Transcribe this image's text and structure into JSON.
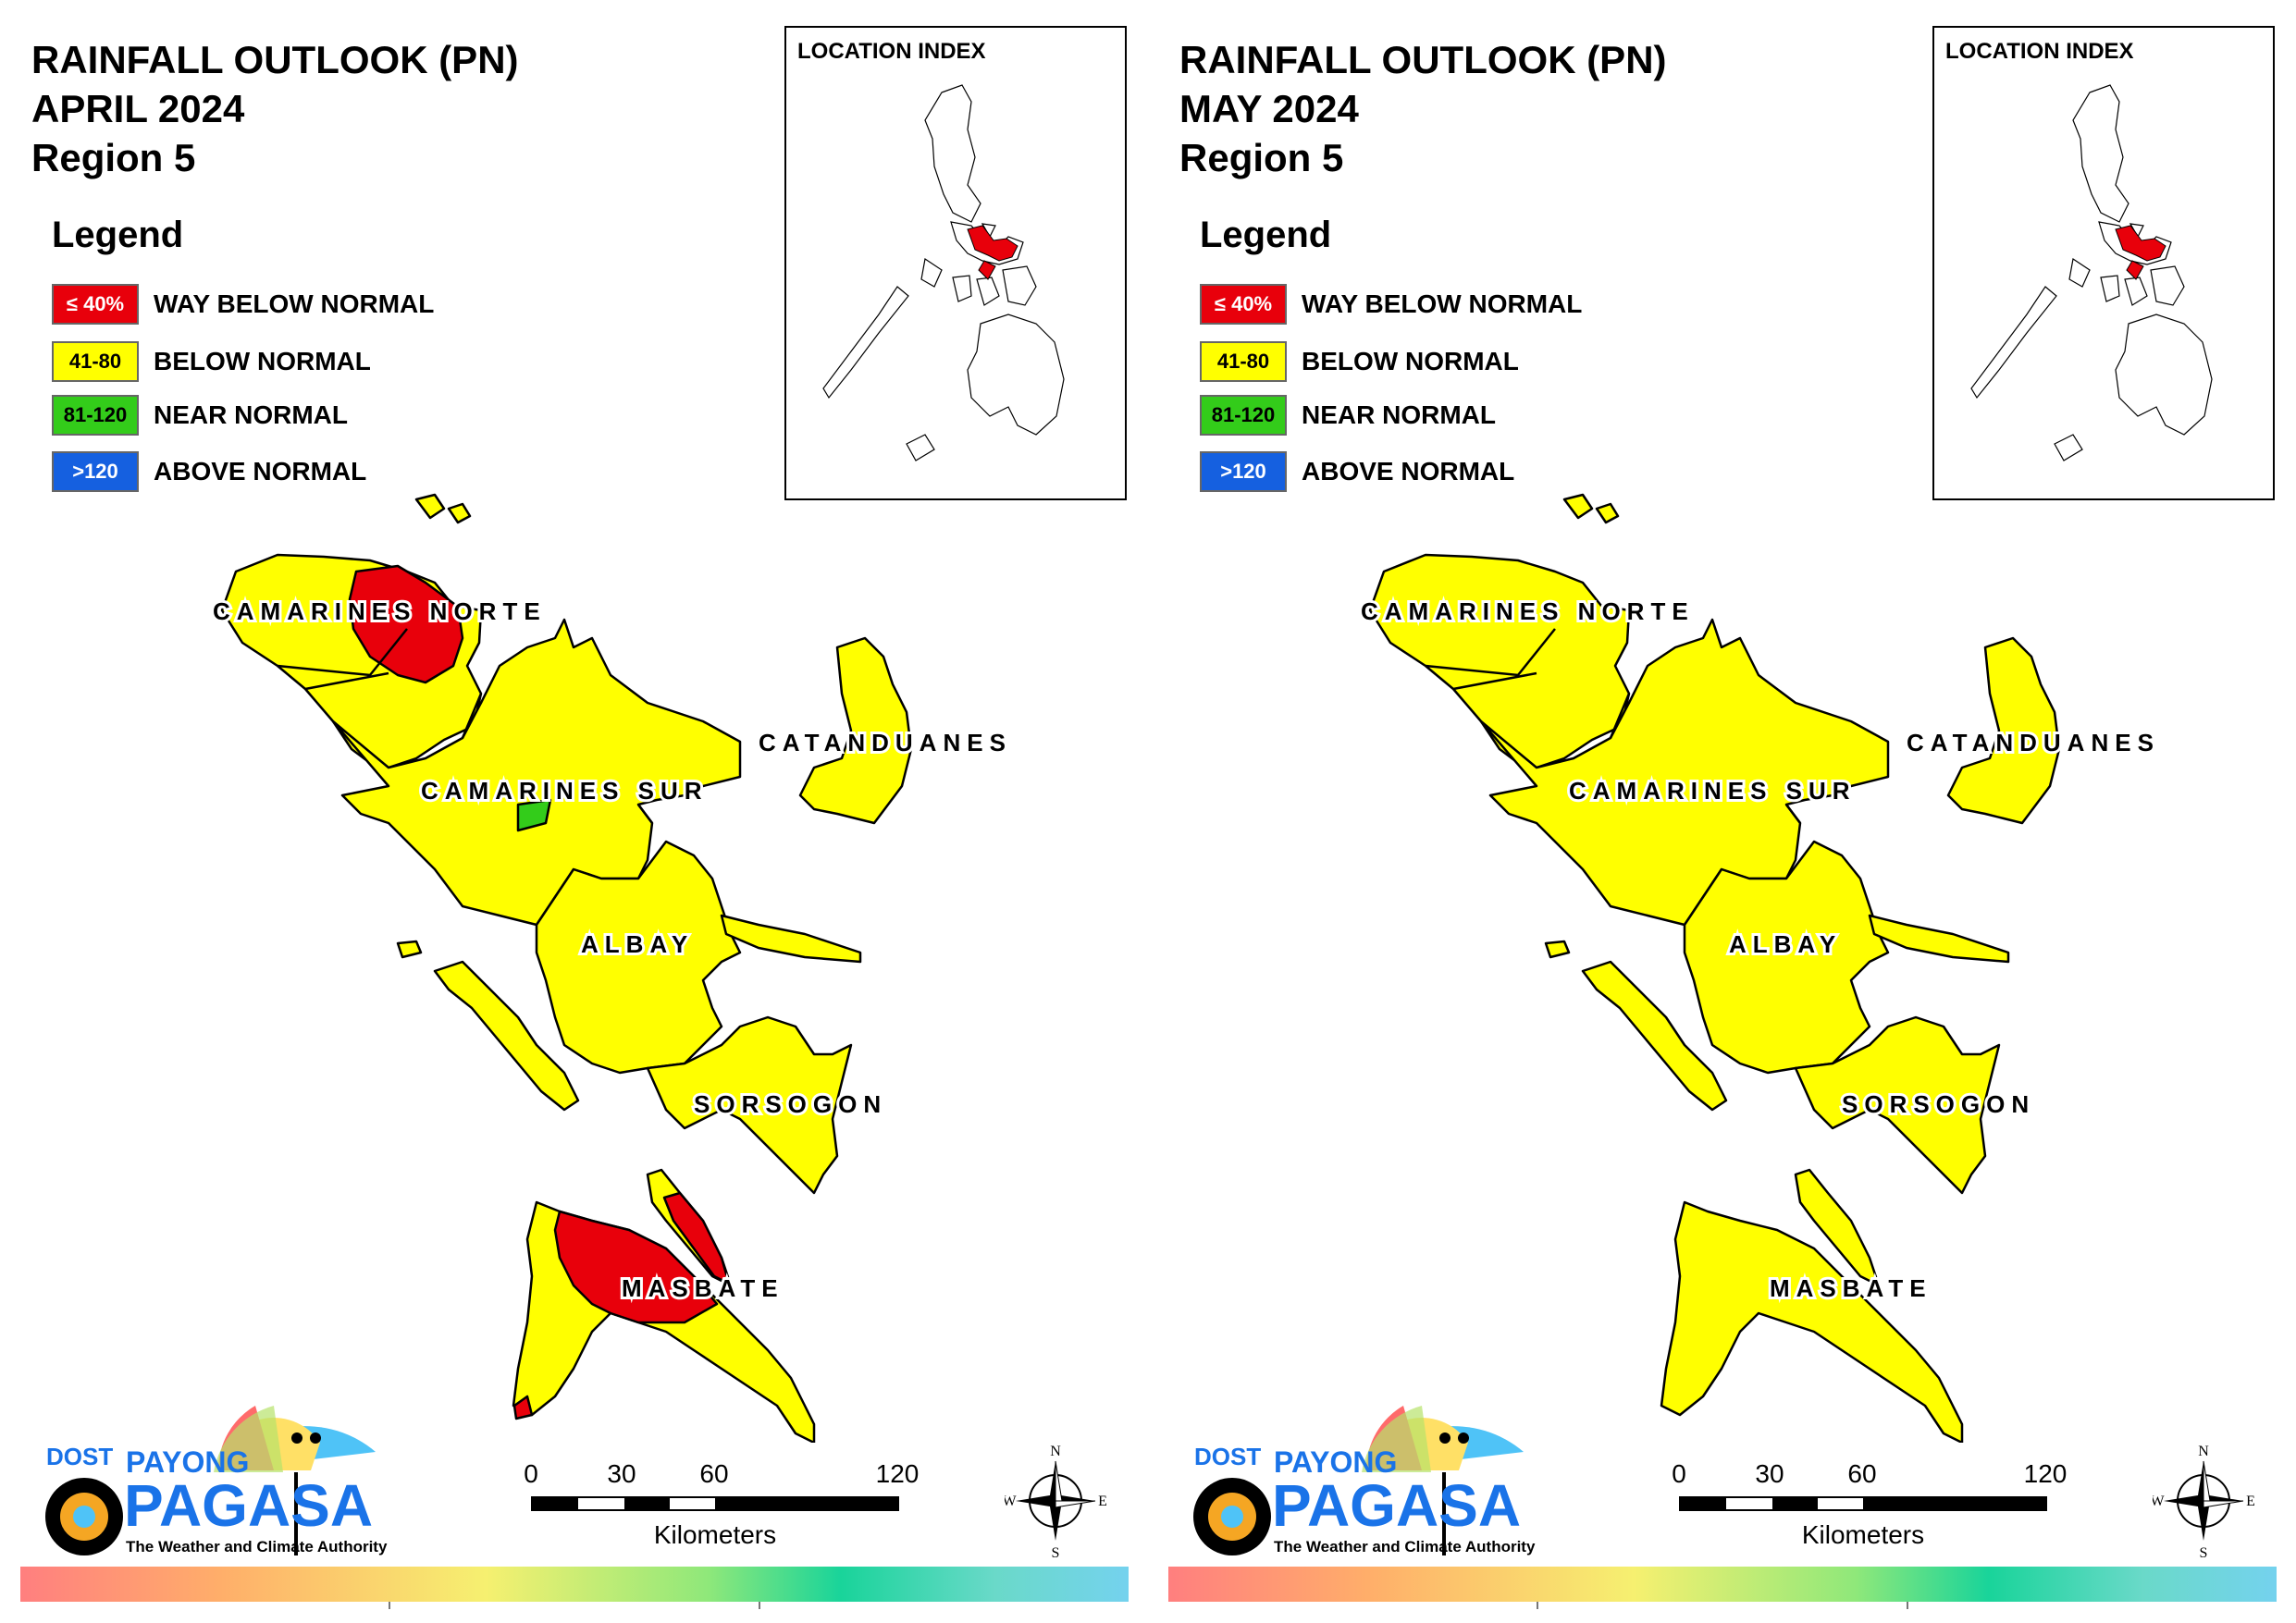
{
  "panels": [
    {
      "title_line1": "RAINFALL OUTLOOK (PN)",
      "title_line2": "APRIL 2024",
      "title_line3": "Region 5",
      "provinces": {
        "camarines_norte": "Camarines Norte",
        "camarines_sur": "Camarines Sur",
        "catanduanes": "Catanduanes",
        "albay": "Albay",
        "sorsogon": "Sorsogon",
        "masbate": "Masbate"
      }
    },
    {
      "title_line1": "RAINFALL OUTLOOK (PN)",
      "title_line2": "MAY 2024",
      "title_line3": "Region 5",
      "provinces": {
        "camarines_norte": "Camarines Norte",
        "camarines_sur": "Camarines Sur",
        "catanduanes": "Catanduanes",
        "albay": "Albay",
        "sorsogon": "Sorsogon",
        "masbate": "Masbate"
      }
    }
  ],
  "legend": {
    "title": "Legend",
    "items": [
      {
        "range": "≤ 40%",
        "label": "WAY BELOW NORMAL",
        "color": "#e8000b"
      },
      {
        "range": "41-80",
        "label": "BELOW NORMAL",
        "color": "#ffff00"
      },
      {
        "range": "81-120",
        "label": "NEAR NORMAL",
        "color": "#33cc1a"
      },
      {
        "range": ">120",
        "label": "ABOVE NORMAL",
        "color": "#1560e0"
      }
    ]
  },
  "inset": {
    "title": "LOCATION INDEX"
  },
  "scale": {
    "ticks": [
      "0",
      "30",
      "60",
      "120"
    ],
    "unit": "Kilometers"
  },
  "compass": {
    "n": "N",
    "s": "S",
    "e": "E",
    "w": "W"
  },
  "logo": {
    "dost": "DOST",
    "payong": "PAYONG",
    "pagasa": "PAGASA",
    "tagline": "The Weather and Climate Authority"
  },
  "colors": {
    "yellow": "#ffff00",
    "red": "#e8000b",
    "green": "#33cc1a",
    "outline": "#000000"
  }
}
